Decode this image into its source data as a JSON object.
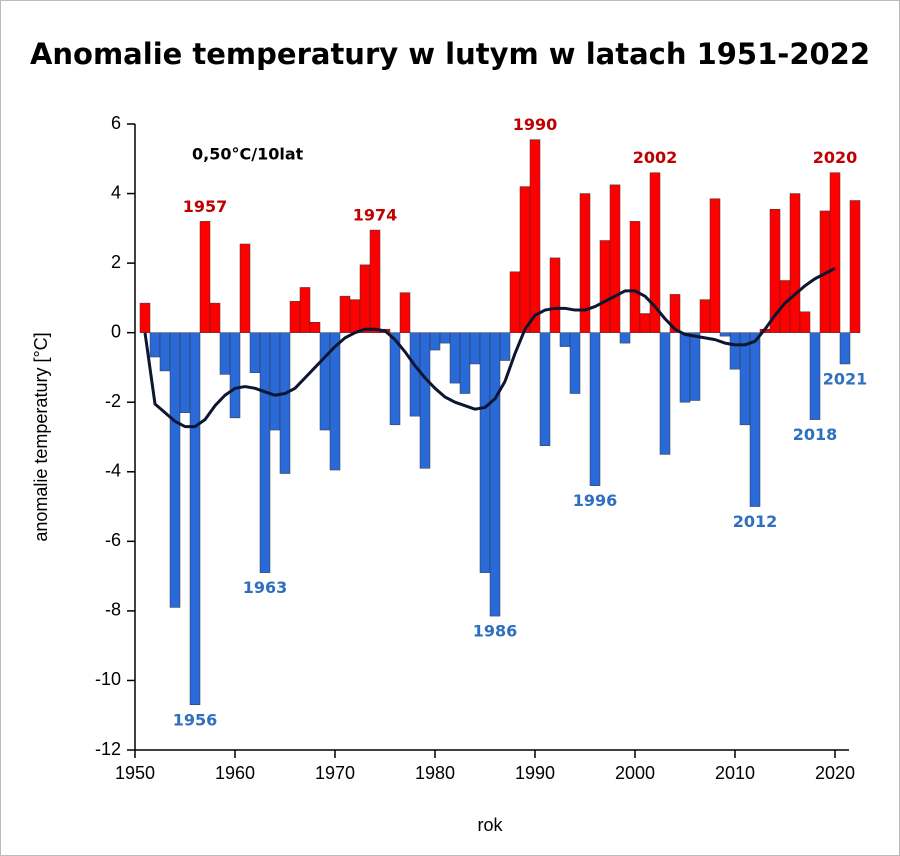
{
  "chart_data": {
    "type": "bar",
    "title": "Anomalie temperatury w lutym w latach 1951-2022",
    "x_label": "rok",
    "y_label": "anomalie temperatury [°C]",
    "trend_note": "0,50°C/10lat",
    "x": [
      1951,
      1952,
      1953,
      1954,
      1955,
      1956,
      1957,
      1958,
      1959,
      1960,
      1961,
      1962,
      1963,
      1964,
      1965,
      1966,
      1967,
      1968,
      1969,
      1970,
      1971,
      1972,
      1973,
      1974,
      1975,
      1976,
      1977,
      1978,
      1979,
      1980,
      1981,
      1982,
      1983,
      1984,
      1985,
      1986,
      1987,
      1988,
      1989,
      1990,
      1991,
      1992,
      1993,
      1994,
      1995,
      1996,
      1997,
      1998,
      1999,
      2000,
      2001,
      2002,
      2003,
      2004,
      2005,
      2006,
      2007,
      2008,
      2009,
      2010,
      2011,
      2012,
      2013,
      2014,
      2015,
      2016,
      2017,
      2018,
      2019,
      2020,
      2021,
      2022
    ],
    "values": [
      0.85,
      -0.7,
      -1.1,
      -7.9,
      -2.3,
      -10.7,
      3.2,
      0.85,
      -1.2,
      -2.45,
      2.55,
      -1.15,
      -6.9,
      -2.8,
      -4.05,
      0.9,
      1.3,
      0.3,
      -2.8,
      -3.95,
      1.05,
      0.95,
      1.95,
      2.95,
      0.1,
      -2.65,
      1.15,
      -2.4,
      -3.9,
      -0.5,
      -0.3,
      -1.45,
      -1.75,
      -0.9,
      -6.9,
      -8.15,
      -0.8,
      1.75,
      4.2,
      5.55,
      -3.25,
      2.15,
      -0.4,
      -1.75,
      4.0,
      -4.4,
      2.65,
      4.25,
      -0.3,
      3.2,
      0.55,
      4.6,
      -3.5,
      1.1,
      -2.0,
      -1.95,
      0.95,
      3.85,
      -0.1,
      -1.05,
      -2.65,
      -5.0,
      0.1,
      3.55,
      1.5,
      4.0,
      0.6,
      -2.5,
      3.5,
      4.6,
      -0.9,
      3.8
    ],
    "positive_color": "#ff0000",
    "negative_color": "#2a6ad8",
    "smooth": {
      "color": "#0d1530",
      "x": [
        1951,
        1952,
        1953,
        1954,
        1955,
        1956,
        1957,
        1958,
        1959,
        1960,
        1961,
        1962,
        1963,
        1964,
        1965,
        1966,
        1967,
        1968,
        1969,
        1970,
        1971,
        1972,
        1973,
        1974,
        1975,
        1976,
        1977,
        1978,
        1979,
        1980,
        1981,
        1982,
        1983,
        1984,
        1985,
        1986,
        1987,
        1988,
        1989,
        1990,
        1991,
        1992,
        1993,
        1994,
        1995,
        1996,
        1997,
        1998,
        1999,
        2000,
        2001,
        2002,
        2003,
        2004,
        2005,
        2006,
        2007,
        2008,
        2009,
        2010,
        2011,
        2012,
        2013,
        2014,
        2015,
        2016,
        2017,
        2018,
        2019,
        2020
      ],
      "values": [
        0,
        -2.05,
        -2.3,
        -2.55,
        -2.7,
        -2.7,
        -2.5,
        -2.1,
        -1.8,
        -1.6,
        -1.55,
        -1.6,
        -1.7,
        -1.8,
        -1.75,
        -1.6,
        -1.3,
        -1.0,
        -0.7,
        -0.4,
        -0.15,
        0.0,
        0.1,
        0.1,
        0.05,
        -0.2,
        -0.55,
        -0.95,
        -1.3,
        -1.6,
        -1.85,
        -2.0,
        -2.1,
        -2.2,
        -2.15,
        -1.9,
        -1.4,
        -0.6,
        0.1,
        0.5,
        0.65,
        0.7,
        0.7,
        0.65,
        0.65,
        0.75,
        0.9,
        1.05,
        1.2,
        1.2,
        1.05,
        0.75,
        0.4,
        0.1,
        -0.05,
        -0.1,
        -0.15,
        -0.2,
        -0.3,
        -0.35,
        -0.35,
        -0.25,
        0.1,
        0.5,
        0.85,
        1.1,
        1.35,
        1.55,
        1.7,
        1.85
      ]
    },
    "year_labels": [
      "1956",
      "1957",
      "1963",
      "1974",
      "1986",
      "1990",
      "1996",
      "2002",
      "2012",
      "2018",
      "2020",
      "2021"
    ],
    "positive_label_color": "#c00000",
    "negative_label_color": "#2e6fc0",
    "xlim": [
      1950,
      2022
    ],
    "xticks": [
      1950,
      1960,
      1970,
      1980,
      1990,
      2000,
      2010,
      2020
    ],
    "ylim": [
      -12,
      6
    ],
    "yticks": [
      -12,
      -10,
      -8,
      -6,
      -4,
      -2,
      0,
      2,
      4,
      6
    ]
  }
}
